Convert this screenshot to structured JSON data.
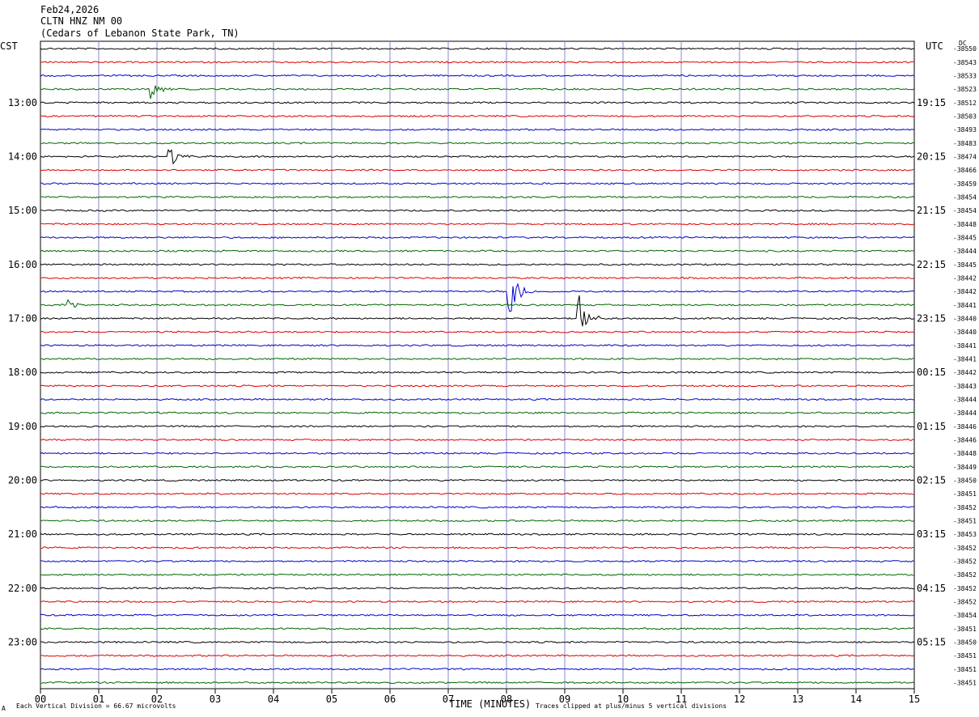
{
  "header": {
    "date": "Feb24,2026",
    "station": "CLTN HNZ NM 00",
    "location": "(Cedars of Lebanon State Park, TN)"
  },
  "left_zone_label": "CST",
  "right_zone_label": "UTC",
  "dc_label": "DC",
  "footer": {
    "vertical_division": "Each Vertical Division =   66.67 microvolts",
    "xlabel": "TIME (MINUTES)",
    "clip_note": "Traces clipped at plus/minus 5 vertical divisions",
    "corner_mark": "A"
  },
  "colors": {
    "trace_cycle": [
      "#000000",
      "#dd0000",
      "#0000cc",
      "#006600"
    ],
    "grid_vertical": "#8888cc",
    "grid_horizontal": "#000000"
  },
  "chart_data": {
    "type": "line",
    "title": "CLTN HNZ NM 00",
    "xlabel": "TIME (MINUTES)",
    "ylabel": "",
    "xlim": [
      0,
      15
    ],
    "x_tick_labels": [
      "00",
      "01",
      "02",
      "03",
      "04",
      "05",
      "06",
      "07",
      "08",
      "09",
      "10",
      "11",
      "12",
      "13",
      "14",
      "15"
    ],
    "row_count": 48,
    "minutes_per_row": 15,
    "left_hour_labels": [
      "13:00",
      "14:00",
      "15:00",
      "16:00",
      "17:00",
      "18:00",
      "19:00",
      "20:00",
      "21:00",
      "22:00",
      "23:00"
    ],
    "right_hour_labels": [
      "19:15",
      "20:15",
      "21:15",
      "22:15",
      "23:15",
      "00:15",
      "01:15",
      "02:15",
      "03:15",
      "04:15",
      "05:15"
    ],
    "dc_offsets": [
      "-38550",
      "-38543",
      "-38533",
      "-38523",
      "-38512",
      "-38503",
      "-38493",
      "-38483",
      "-38474",
      "-38466",
      "-38459",
      "-38454",
      "-38454",
      "-38448",
      "-38445",
      "-38444",
      "-38445",
      "-38442",
      "-38442",
      "-38441",
      "-38440",
      "-38440",
      "-38441",
      "-38441",
      "-38442",
      "-38443",
      "-38444",
      "-38444",
      "-38446",
      "-38446",
      "-38448",
      "-38449",
      "-38450",
      "-38451",
      "-38452",
      "-38451",
      "-38453",
      "-38452",
      "-38452",
      "-38452",
      "-38452",
      "-38452",
      "-38454",
      "-38451",
      "-38450",
      "-38451",
      "-38451",
      "-38451"
    ],
    "events": [
      {
        "row": 3,
        "minute": 1.9,
        "amplitude": 0.8
      },
      {
        "row": 8,
        "minute": 2.2,
        "amplitude": 1.2
      },
      {
        "row": 19,
        "minute": 0.45,
        "amplitude": 0.5
      },
      {
        "row": 18,
        "minute": 8.05,
        "amplitude": 2.5
      },
      {
        "row": 20,
        "minute": 9.25,
        "amplitude": 2.0
      }
    ]
  }
}
